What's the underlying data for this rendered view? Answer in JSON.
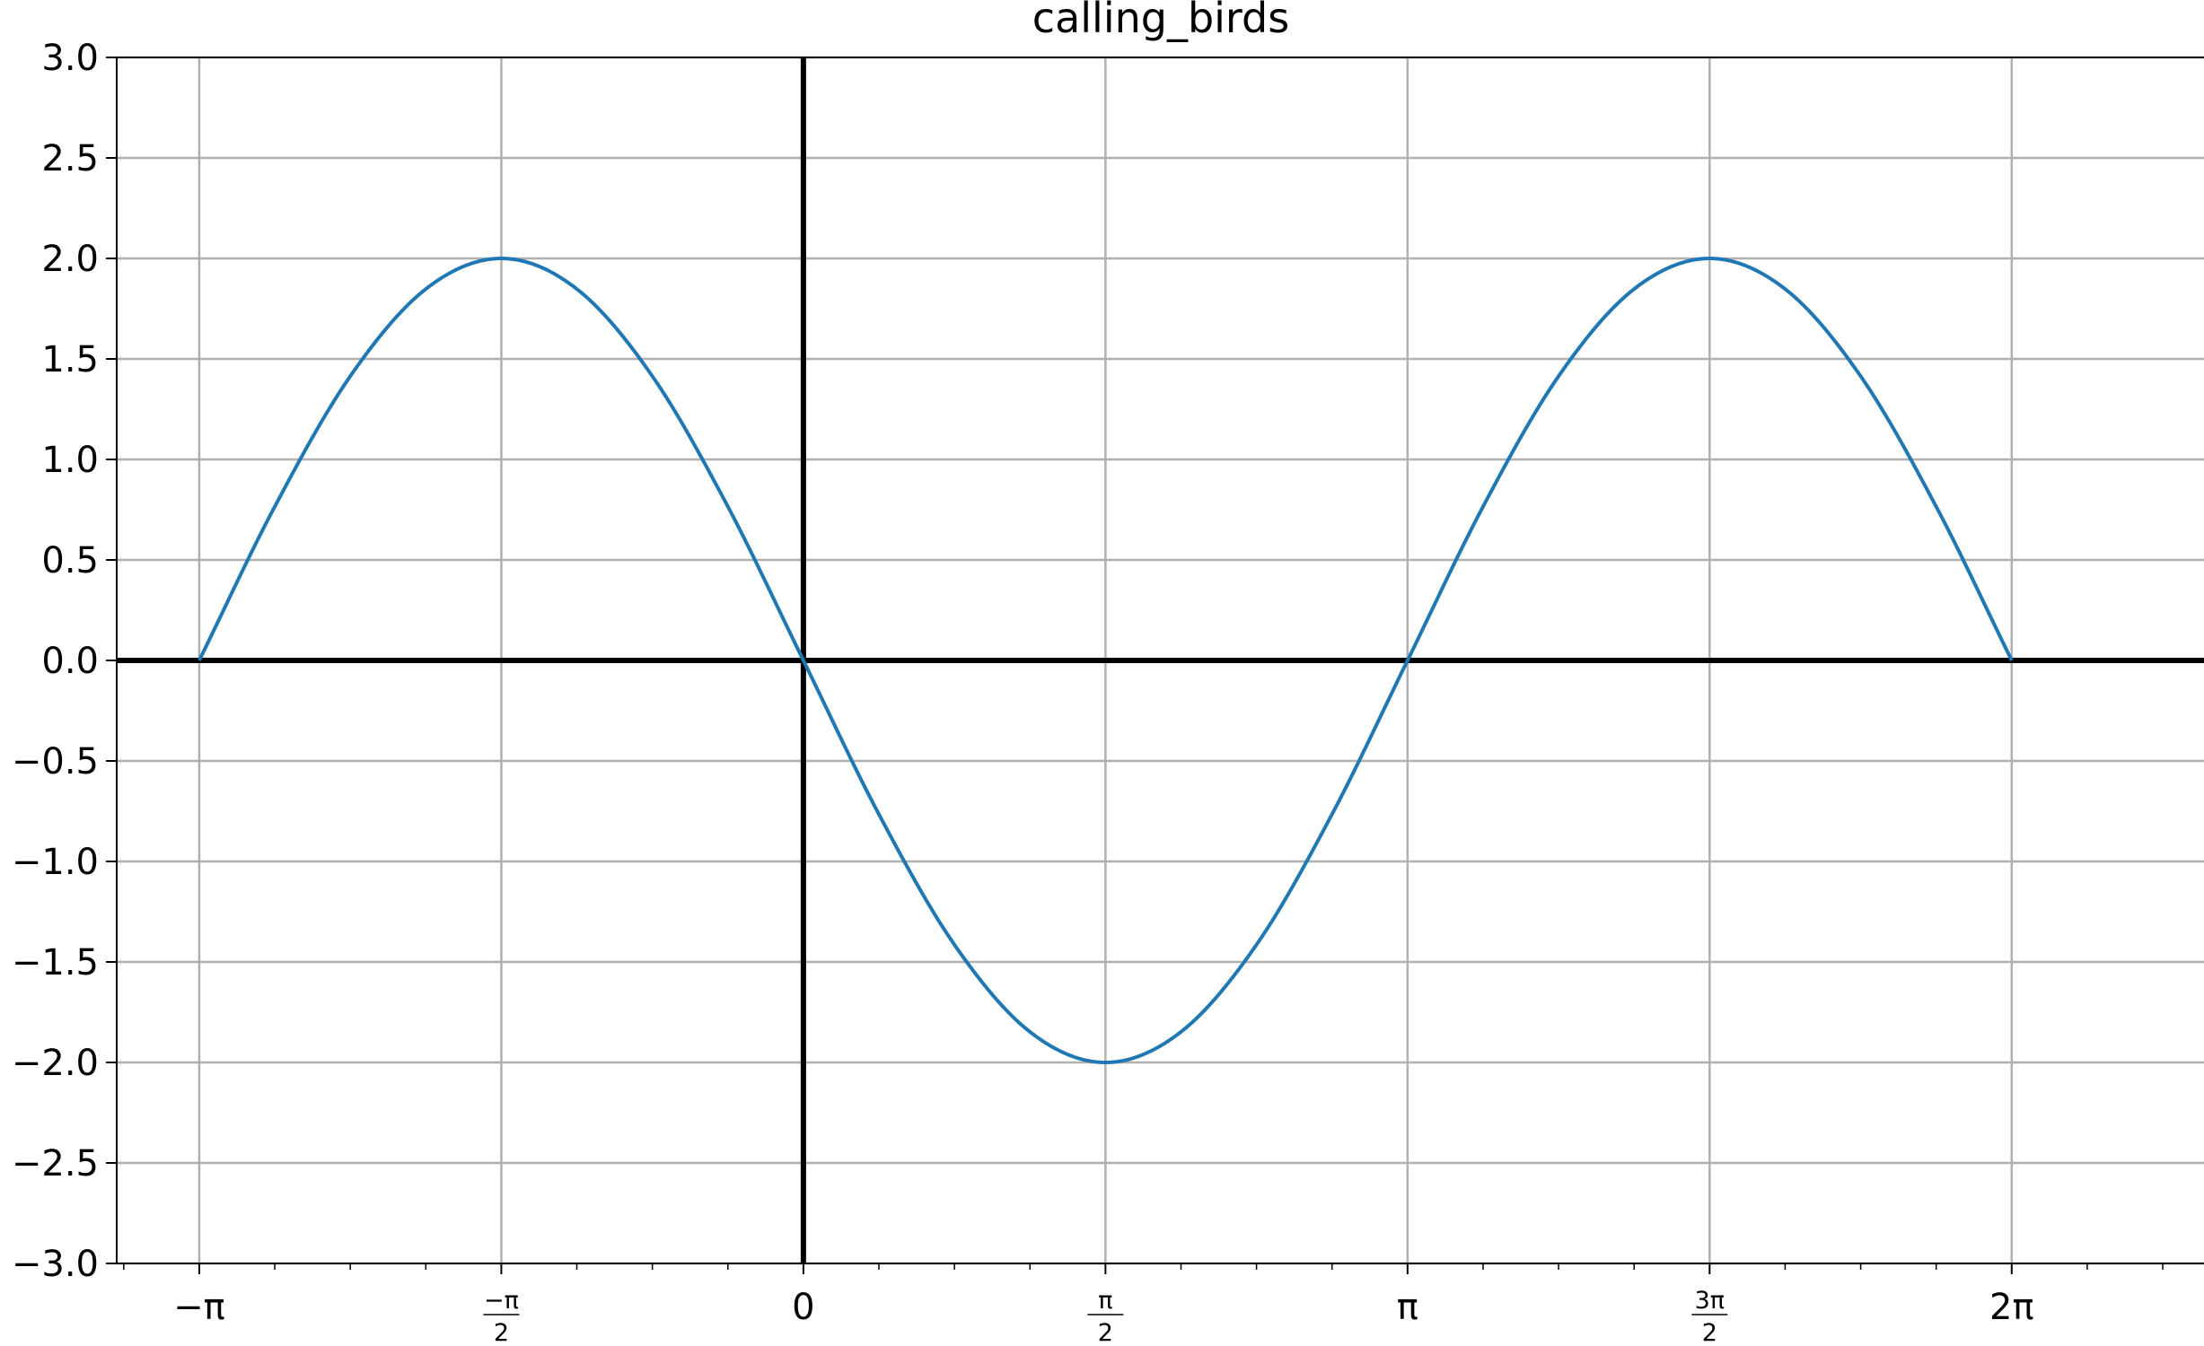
{
  "chart_data": {
    "type": "line",
    "title": "calling_birds",
    "xlabel": "",
    "ylabel": "",
    "xlim": [
      -3.5708,
      7.2832
    ],
    "ylim": [
      -3.0,
      3.0
    ],
    "grid": true,
    "x_ticks": [
      {
        "value": -3.14159,
        "label": "−π"
      },
      {
        "value": -1.5708,
        "numerator": "−π",
        "denominator": "2"
      },
      {
        "value": 0,
        "label": "0"
      },
      {
        "value": 1.5708,
        "numerator": "π",
        "denominator": "2"
      },
      {
        "value": 3.14159,
        "label": "π"
      },
      {
        "value": 4.71239,
        "numerator": "3π",
        "denominator": "2"
      },
      {
        "value": 6.28319,
        "label": "2π"
      }
    ],
    "y_ticks": [
      {
        "value": 3.0,
        "label": "3.0"
      },
      {
        "value": 2.5,
        "label": "2.5"
      },
      {
        "value": 2.0,
        "label": "2.0"
      },
      {
        "value": 1.5,
        "label": "1.5"
      },
      {
        "value": 1.0,
        "label": "1.0"
      },
      {
        "value": 0.5,
        "label": "0.5"
      },
      {
        "value": 0.0,
        "label": "0.0"
      },
      {
        "value": -0.5,
        "label": "−0.5"
      },
      {
        "value": -1.0,
        "label": "−1.0"
      },
      {
        "value": -1.5,
        "label": "−1.5"
      },
      {
        "value": -2.0,
        "label": "−2.0"
      },
      {
        "value": -2.5,
        "label": "−2.5"
      },
      {
        "value": -3.0,
        "label": "−3.0"
      }
    ],
    "series": [
      {
        "color": "#1f77b4",
        "points": [
          [
            -3.14159,
            0.0
          ],
          [
            -2.74889,
            0.7654
          ],
          [
            -2.35619,
            1.4142
          ],
          [
            -1.9635,
            1.8478
          ],
          [
            -1.5708,
            2.0
          ],
          [
            -1.1781,
            1.8478
          ],
          [
            -0.7854,
            1.4142
          ],
          [
            -0.3927,
            0.7654
          ],
          [
            0.0,
            0.0
          ],
          [
            0.3927,
            -0.7654
          ],
          [
            0.7854,
            -1.4142
          ],
          [
            1.1781,
            -1.8478
          ],
          [
            1.5708,
            -2.0
          ],
          [
            1.9635,
            -1.8478
          ],
          [
            2.35619,
            -1.4142
          ],
          [
            2.74889,
            -0.7654
          ],
          [
            3.14159,
            0.0
          ],
          [
            3.53429,
            0.7654
          ],
          [
            3.92699,
            1.4142
          ],
          [
            4.31969,
            1.8478
          ],
          [
            4.71239,
            2.0
          ],
          [
            5.10509,
            1.8478
          ],
          [
            5.49779,
            1.4142
          ],
          [
            5.89049,
            0.7654
          ],
          [
            6.28319,
            0.0
          ]
        ]
      }
    ],
    "colors": {
      "grid": "#b0b0b0",
      "axes_lines": "#000000",
      "line": "#1f77b4"
    }
  }
}
